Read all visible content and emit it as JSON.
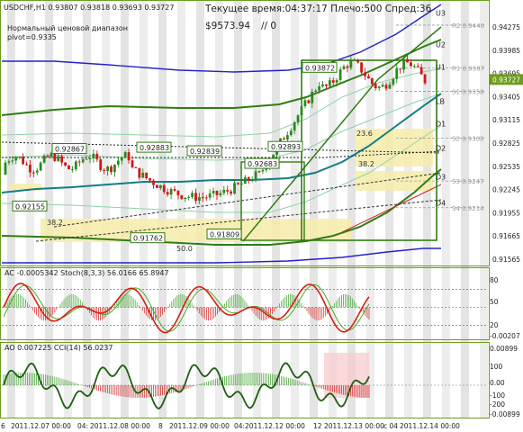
{
  "header": {
    "symbol_line": "USDCHF,H1  0.93807 0.93818 0.93693 0.93727",
    "indicator_note": "Нормальный ценовой диапазон",
    "pivot_note": "pivot=0.9335",
    "server_time": "Текущее время:04:37:17 Плечо:500 Спред:36",
    "balance": "$9573.94",
    "balance_suffix": "// 0"
  },
  "colors": {
    "candle_up": "#2a8a1e",
    "candle_down": "#d01818",
    "grid_frame": "#6c9d1f",
    "sell_zone": "#f7ecaa",
    "current_price_bg": "#6c9d1f"
  },
  "chart_data": [
    {
      "type": "candlestick",
      "title": "USDCHF,H1",
      "ylim": [
        0.9148,
        0.946
      ],
      "price_ticks": [
        "0.94275",
        "0.93985",
        "0.93695",
        "0.93405",
        "0.93115",
        "0.92825",
        "0.92535",
        "0.92245",
        "0.91955",
        "0.91665",
        "0.91565"
      ],
      "current_price": "0.93727",
      "level_lines": [
        {
          "name": "U3",
          "value": 0.9455
        },
        {
          "name": "R2",
          "label": "R2 0.9440",
          "value": 0.944
        },
        {
          "name": "U2",
          "value": 0.9416
        },
        {
          "name": "R1",
          "label": "R1 0.9387",
          "value": 0.9387
        },
        {
          "name": "U1",
          "value": 0.9388
        },
        {
          "name": "S1",
          "label": "S1 0.9358",
          "value": 0.9358
        },
        {
          "name": "LB",
          "value": 0.9346
        },
        {
          "name": "D1",
          "value": 0.9318
        },
        {
          "name": "S2",
          "label": "S2 0.9300",
          "value": 0.93
        },
        {
          "name": "D2",
          "value": 0.9288
        },
        {
          "name": "S3",
          "label": "S3 0.9247",
          "value": 0.9247
        },
        {
          "name": "D3",
          "value": 0.9252
        },
        {
          "name": "S4",
          "label": "S4 0.9214",
          "value": 0.9214
        },
        {
          "name": "D4",
          "value": 0.922
        }
      ],
      "price_tags": [
        {
          "text": "0.92867",
          "value": 0.92867
        },
        {
          "text": "0.92883",
          "value": 0.92883
        },
        {
          "text": "0.92839",
          "value": 0.92839
        },
        {
          "text": "0.92683",
          "value": 0.92683
        },
        {
          "text": "0.92893",
          "value": 0.92893
        },
        {
          "text": "0.93872",
          "value": 0.93872
        },
        {
          "text": "0.92155",
          "value": 0.92155
        },
        {
          "text": "0.91762",
          "value": 0.91762
        },
        {
          "text": "0.91809",
          "value": 0.91809
        }
      ],
      "fib_labels": [
        "38.2",
        "50.0",
        "23.6",
        "38.2"
      ]
    },
    {
      "type": "line",
      "title": "AC -0.0005342  Stoch(8,3,3) 56.0166 65.8947",
      "ylim": [
        0,
        100
      ],
      "right_labels": [
        "80",
        "50",
        "20",
        "-0.00207"
      ]
    },
    {
      "type": "line",
      "title": "AO 0.007225  CCI(14) 56.0237",
      "right_labels": [
        "0.00899",
        "100",
        "0.00",
        "-100",
        "-200",
        "-0.00899"
      ]
    }
  ],
  "time_axis": [
    "6",
    "2011.12.07 00:00",
    "04:",
    "2011.12.08 00:00",
    "8",
    "2011.12.09 00:00",
    "04:",
    "2011.12.12 00:00",
    "12",
    "2011.12.13 00:00",
    "c 04",
    "2011.12.14 00:00"
  ]
}
